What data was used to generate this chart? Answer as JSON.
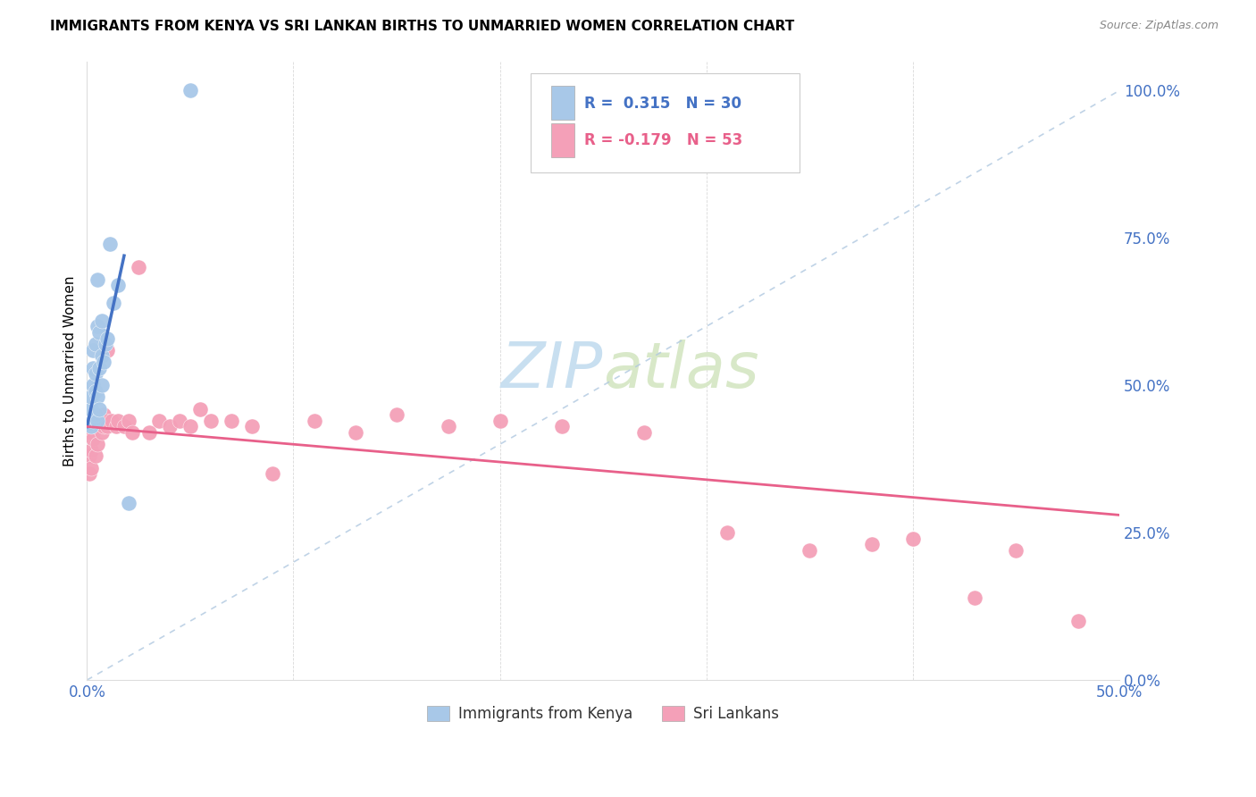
{
  "title": "IMMIGRANTS FROM KENYA VS SRI LANKAN BIRTHS TO UNMARRIED WOMEN CORRELATION CHART",
  "source": "Source: ZipAtlas.com",
  "ylabel": "Births to Unmarried Women",
  "legend_blue_label": "Immigrants from Kenya",
  "legend_pink_label": "Sri Lankans",
  "R_blue": 0.315,
  "N_blue": 30,
  "R_pink": -0.179,
  "N_pink": 53,
  "blue_color": "#a8c8e8",
  "blue_line_color": "#4472c4",
  "pink_color": "#f4a0b8",
  "pink_line_color": "#e8608a",
  "diag_color": "#b0c8e0",
  "xmin": 0.0,
  "xmax": 0.5,
  "ymin": 0.0,
  "ymax": 1.05,
  "blue_x": [
    0.001,
    0.002,
    0.002,
    0.002,
    0.003,
    0.003,
    0.003,
    0.003,
    0.004,
    0.004,
    0.004,
    0.004,
    0.005,
    0.005,
    0.005,
    0.005,
    0.006,
    0.006,
    0.006,
    0.007,
    0.007,
    0.007,
    0.008,
    0.009,
    0.01,
    0.011,
    0.013,
    0.015,
    0.02,
    0.05
  ],
  "blue_y": [
    0.435,
    0.43,
    0.46,
    0.48,
    0.44,
    0.5,
    0.53,
    0.56,
    0.45,
    0.49,
    0.52,
    0.57,
    0.44,
    0.48,
    0.6,
    0.68,
    0.46,
    0.53,
    0.59,
    0.5,
    0.55,
    0.61,
    0.54,
    0.57,
    0.58,
    0.74,
    0.64,
    0.67,
    0.3,
    1.0
  ],
  "pink_x": [
    0.001,
    0.001,
    0.002,
    0.002,
    0.002,
    0.003,
    0.003,
    0.003,
    0.004,
    0.004,
    0.005,
    0.005,
    0.005,
    0.006,
    0.006,
    0.007,
    0.007,
    0.008,
    0.008,
    0.009,
    0.01,
    0.01,
    0.012,
    0.014,
    0.015,
    0.018,
    0.02,
    0.022,
    0.025,
    0.03,
    0.035,
    0.04,
    0.045,
    0.05,
    0.055,
    0.06,
    0.07,
    0.08,
    0.09,
    0.11,
    0.13,
    0.15,
    0.175,
    0.2,
    0.23,
    0.27,
    0.31,
    0.35,
    0.38,
    0.4,
    0.43,
    0.45,
    0.48
  ],
  "pink_y": [
    0.38,
    0.35,
    0.42,
    0.39,
    0.36,
    0.42,
    0.41,
    0.44,
    0.38,
    0.43,
    0.43,
    0.4,
    0.44,
    0.43,
    0.44,
    0.42,
    0.44,
    0.43,
    0.45,
    0.44,
    0.43,
    0.56,
    0.44,
    0.43,
    0.44,
    0.43,
    0.44,
    0.42,
    0.7,
    0.42,
    0.44,
    0.43,
    0.44,
    0.43,
    0.46,
    0.44,
    0.44,
    0.43,
    0.35,
    0.44,
    0.42,
    0.45,
    0.43,
    0.44,
    0.43,
    0.42,
    0.25,
    0.22,
    0.23,
    0.24,
    0.14,
    0.22,
    0.1
  ]
}
